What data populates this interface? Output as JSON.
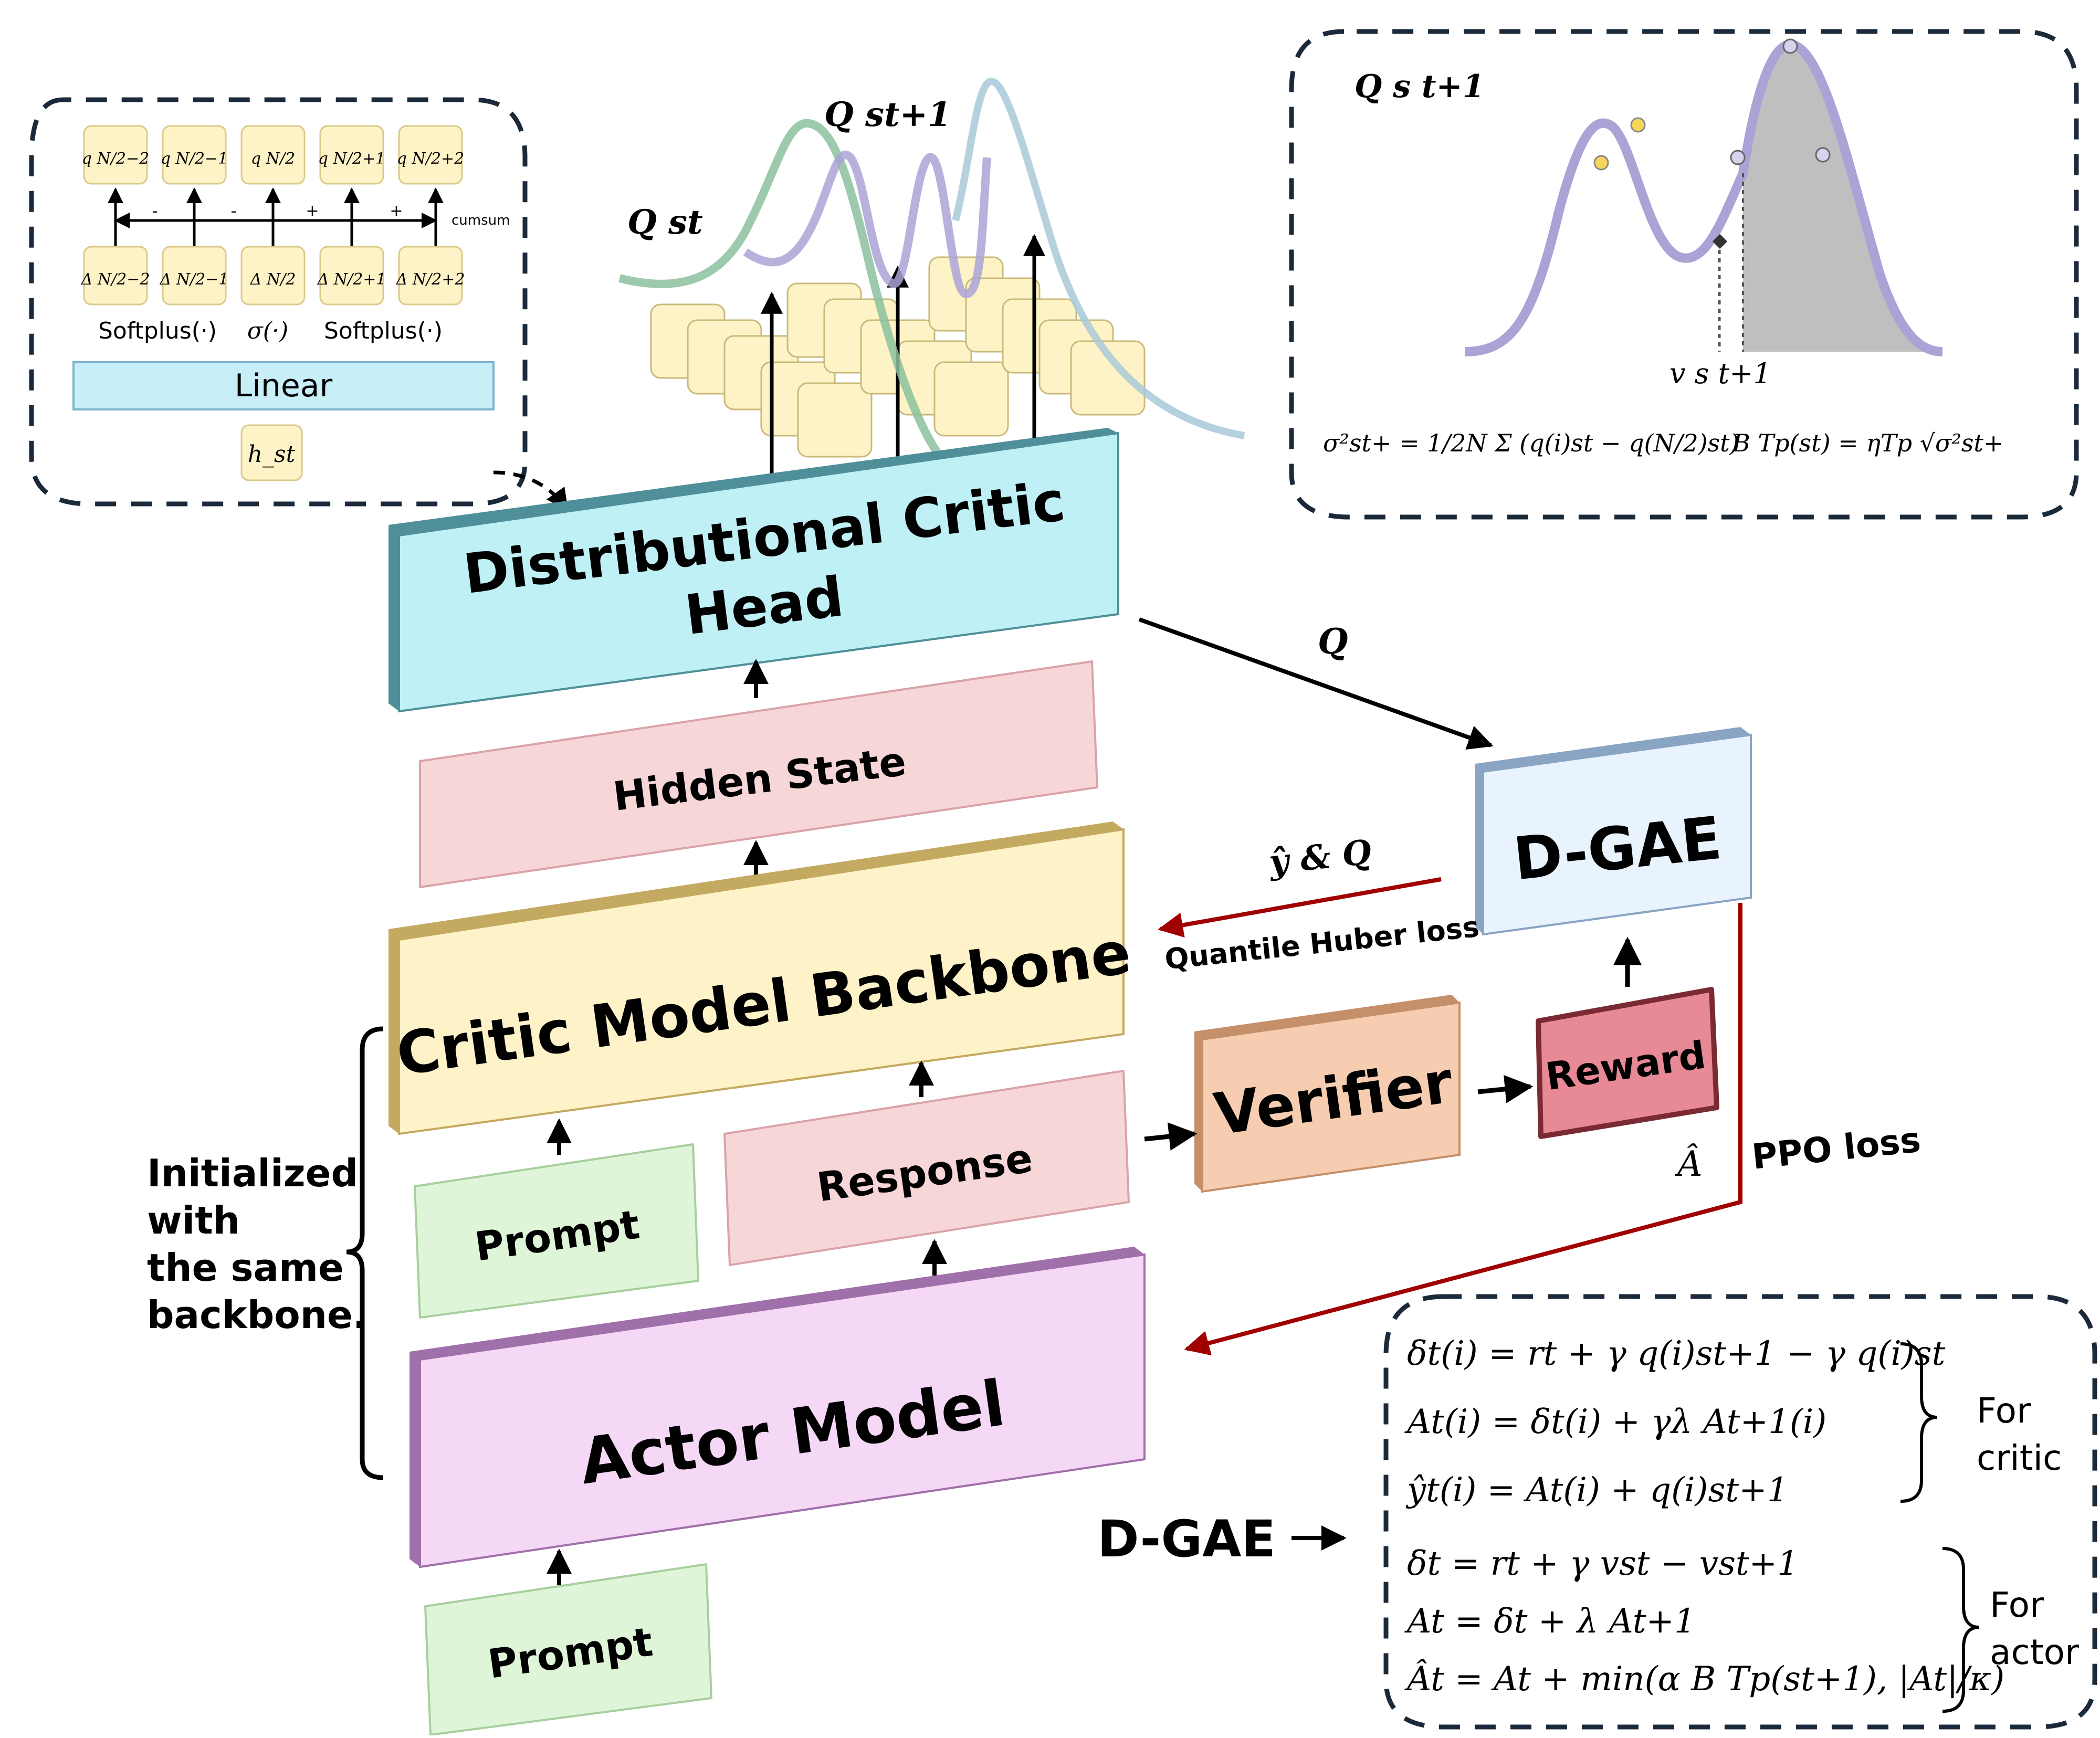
{
  "diagram": {
    "blocks": {
      "distributional_head_line1": "Distributional Critic",
      "distributional_head_line2": "Head",
      "hidden_state": "Hidden State",
      "critic_backbone": "Critic Model Backbone",
      "prompt_top": "Prompt",
      "response": "Response",
      "actor_model": "Actor Model",
      "prompt_bottom": "Prompt",
      "verifier": "Verifier",
      "reward": "Reward",
      "dgae": "D-GAE"
    },
    "inset_left": {
      "linear": "Linear",
      "hidden_input": "h_st",
      "softplus_left": "Softplus(·)",
      "sigma": "σ(·)",
      "softplus_right": "Softplus(·)",
      "cumsum": "cumsum",
      "signs": [
        "-",
        "-",
        "+",
        "+"
      ],
      "top_tiles": [
        "q N/2−2",
        "q N/2−1",
        "q N/2",
        "q N/2+1",
        "q N/2+2"
      ],
      "bottom_tiles": [
        "Δ N/2−2",
        "Δ N/2−1",
        "Δ N/2",
        "Δ N/2+1",
        "Δ N/2+2"
      ]
    },
    "inset_right": {
      "title": "Q s t+1",
      "value_label": "v s t+1",
      "formula_sigma": "σ²st+ = 1/2N Σ (q(i)st − q(N/2)st)",
      "formula_b": "B Tp(st) = ηTp √σ²st+"
    },
    "labels": {
      "q_st": "Q st",
      "q_st1": "Q st+1",
      "q_arrow": "Q",
      "y_and_q": "ŷ & Q",
      "quantile_loss": "Quantile Huber loss",
      "ppo_loss": "PPO loss",
      "a_hat": "Â",
      "init_line1": "Initialized",
      "init_line2": "with",
      "init_line3": "the same",
      "init_line4": "backbone.",
      "dgae_label": "D-GAE",
      "for_critic_1": "For",
      "for_critic_2": "critic",
      "for_actor_1": "For",
      "for_actor_2": "actor"
    },
    "equations": {
      "critic": [
        "δt(i) = rt + γ q(i)st+1 − γ q(i)st",
        "At(i) = δt(i) + γλ At+1(i)",
        "ŷt(i) = At(i) + q(i)st+1"
      ],
      "actor": [
        "δt = rt + γ vst − vst+1",
        "At = δt + λ At+1",
        "Ât = At + min(α B Tp(st+1), |At|/κ)"
      ]
    },
    "colors": {
      "head": "#bff0f5",
      "hidden": "#f7d6d8",
      "backbone": "#fdf2c8",
      "prompt": "#dff5d8",
      "actor": "#f5d8f5",
      "verifier": "#f6cdb0",
      "reward": "#e88a96",
      "dgae": "#e8f3fd",
      "red_arrow": "#a00000",
      "curve_green": "#8cbf9e",
      "curve_purple": "#aaa3d6",
      "curve_blue": "#a9c9d8"
    }
  }
}
